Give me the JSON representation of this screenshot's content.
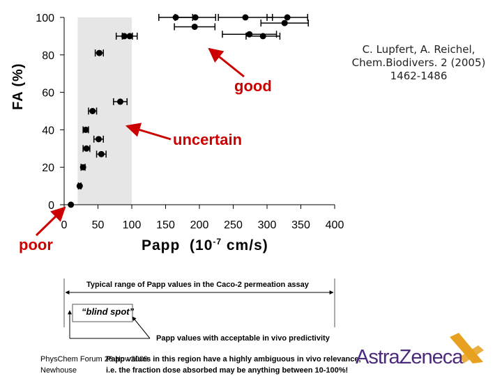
{
  "chart_data": {
    "type": "scatter",
    "title": "",
    "xlabel": "Papp",
    "xlabel_unit_base": "(10",
    "xlabel_unit_exp": "-7",
    "xlabel_unit_tail": " cm/s)",
    "ylabel": "FA (%)",
    "xlim": [
      0,
      400
    ],
    "ylim": [
      0,
      100
    ],
    "xticks": [
      0,
      50,
      100,
      150,
      200,
      250,
      300,
      350,
      400
    ],
    "yticks": [
      0,
      20,
      40,
      60,
      80,
      100
    ],
    "blind_spot_range": [
      20,
      100
    ],
    "points": [
      {
        "x": 10,
        "y": 0,
        "err": 0
      },
      {
        "x": 23,
        "y": 10,
        "err": 2
      },
      {
        "x": 28,
        "y": 20,
        "err": 3
      },
      {
        "x": 33,
        "y": 30,
        "err": 5
      },
      {
        "x": 55,
        "y": 27,
        "err": 7
      },
      {
        "x": 32,
        "y": 40,
        "err": 4
      },
      {
        "x": 51,
        "y": 35,
        "err": 7
      },
      {
        "x": 42,
        "y": 50,
        "err": 6
      },
      {
        "x": 83,
        "y": 55,
        "err": 10
      },
      {
        "x": 52,
        "y": 81,
        "err": 6
      },
      {
        "x": 89,
        "y": 90,
        "err": 12
      },
      {
        "x": 97,
        "y": 90,
        "err": 11
      },
      {
        "x": 165,
        "y": 100,
        "err": 25
      },
      {
        "x": 194,
        "y": 100,
        "err": 30
      },
      {
        "x": 193,
        "y": 95,
        "err": 30
      },
      {
        "x": 268,
        "y": 100,
        "err": 40
      },
      {
        "x": 274,
        "y": 91,
        "err": 40
      },
      {
        "x": 294,
        "y": 90,
        "err": 25
      },
      {
        "x": 330,
        "y": 100,
        "err": 30
      },
      {
        "x": 326,
        "y": 97,
        "err": 35
      }
    ]
  },
  "citation_lines": [
    "C. Lupfert, A. Reichel,",
    "Chem.Biodivers. 2 (2005)",
    "1462-1486"
  ],
  "annotations": {
    "good": "good",
    "uncertain": "uncertain",
    "poor": "poor",
    "accent_color": "#cc0000"
  },
  "range_diagram": {
    "typical_label": "Typical range of Papp values in the Caco-2 permeation assay",
    "blind_spot_label": "“blind spot”",
    "acceptable_label": "Papp values with acceptable in vivo predictivity"
  },
  "footer": {
    "left_line1": "PhysChem Forum 26 Nov 2009",
    "left_line2": "Newhouse",
    "mid_line1": "Papp values in this region have a highly ambiguous in vivo relevance,",
    "mid_line2": "i.e. the fraction dose absorbed may be anything between 10-100%!"
  },
  "logo": {
    "text": "AstraZeneca",
    "color": "#4b2a7b",
    "mark_color": "#e8a020"
  }
}
